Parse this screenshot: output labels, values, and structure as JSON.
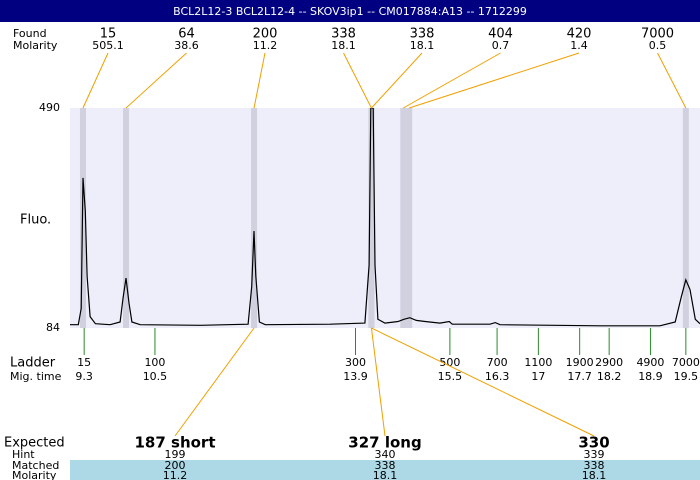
{
  "chart_data": {
    "type": "electropherogram",
    "title": "BCL2L12-3  BCL2L12-4 -- SKOV3ip1 -- CM017884:A13 -- 1712299",
    "ylabel": "Fluo.",
    "ylim": [
      84,
      490
    ],
    "yticks": [
      84,
      490
    ],
    "xlim": [
      9.06,
      19.74
    ],
    "trace": {
      "x": [
        9.06,
        9.2,
        9.25,
        9.28,
        9.32,
        9.35,
        9.4,
        9.49,
        9.74,
        9.91,
        9.96,
        10.01,
        10.06,
        10.11,
        10.25,
        11.27,
        12.08,
        12.14,
        12.18,
        12.21,
        12.27,
        12.37,
        13.47,
        14.06,
        14.13,
        14.16,
        14.2,
        14.23,
        14.28,
        14.4,
        14.62,
        14.72,
        14.82,
        14.93,
        15.08,
        15.33,
        15.49,
        15.54,
        16.18,
        16.27,
        16.35,
        18.05,
        19.06,
        19.32,
        19.42,
        19.5,
        19.57,
        19.66,
        19.74
      ],
      "y": [
        90,
        90,
        120,
        361,
        300,
        180,
        105,
        92,
        90,
        95,
        140,
        176,
        130,
        95,
        90,
        89,
        91,
        160,
        263,
        180,
        95,
        90,
        91,
        93,
        200,
        490,
        490,
        200,
        100,
        93,
        96,
        100,
        103,
        98,
        96,
        93,
        96,
        91,
        91,
        94,
        90,
        88,
        88,
        95,
        140,
        173,
        155,
        100,
        92
      ]
    },
    "peaks": {
      "size_label": "Found",
      "molarity_label": "Molarity",
      "sizes": [
        15,
        64,
        200,
        338,
        338,
        404,
        420,
        7000
      ],
      "molarities": [
        505.1,
        38.6,
        11.2,
        18.1,
        18.1,
        0.7,
        1.4,
        0.5
      ],
      "times": [
        9.28,
        10.01,
        12.18,
        14.17,
        14.17,
        14.71,
        14.81,
        19.5
      ]
    },
    "ladder": {
      "label": "Ladder",
      "time_label": "Mig. time",
      "sizes": [
        15,
        100,
        300,
        500,
        700,
        1100,
        1900,
        2900,
        4900,
        7000
      ],
      "times": [
        9.3,
        10.5,
        13.9,
        15.5,
        16.3,
        17,
        17.7,
        18.2,
        18.9,
        19.5
      ]
    },
    "expected": {
      "label": "Expected",
      "hint_label": "Hint",
      "matched_label": "Matched",
      "molarity_label": "Molarity",
      "items": [
        {
          "name": "187 short",
          "hint": 199,
          "matched": 200,
          "molarity": 11.2
        },
        {
          "name": "327 long",
          "hint": 340,
          "matched": 338,
          "molarity": 18.1
        },
        {
          "name": "330",
          "hint": 339,
          "matched": 338,
          "molarity": 18.1
        }
      ]
    }
  }
}
